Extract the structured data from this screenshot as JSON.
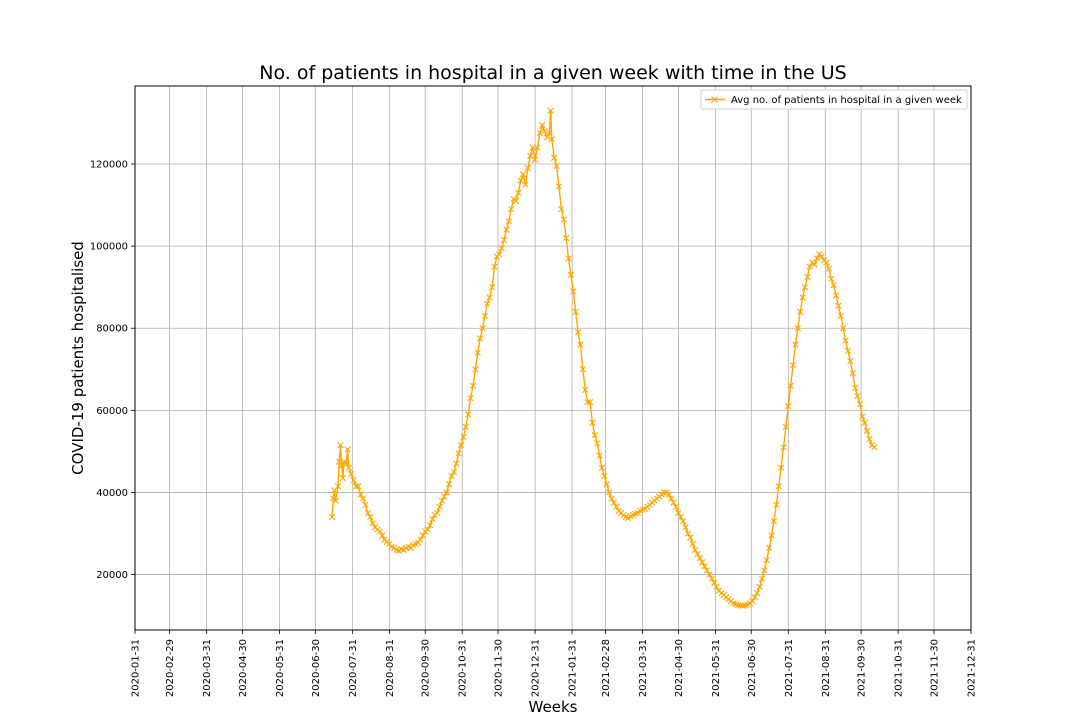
{
  "chart_data": {
    "type": "line",
    "title": "No. of patients in hospital in a given week with time in the US",
    "xlabel": "Weeks",
    "ylabel": "COVID-19 patients hospitalised",
    "grid": true,
    "legend_position": "top-right",
    "line_color": "#FFA500",
    "marker": "x",
    "x_ticks": [
      "2020-01-31",
      "2020-02-29",
      "2020-03-31",
      "2020-04-30",
      "2020-05-31",
      "2020-06-30",
      "2020-07-31",
      "2020-08-31",
      "2020-09-30",
      "2020-10-31",
      "2020-11-30",
      "2020-12-31",
      "2021-01-31",
      "2021-02-28",
      "2021-03-31",
      "2021-04-30",
      "2021-05-31",
      "2021-06-30",
      "2021-07-31",
      "2021-08-31",
      "2021-09-30",
      "2021-10-31",
      "2021-11-30",
      "2021-12-31"
    ],
    "y_ticks": [
      20000,
      40000,
      60000,
      80000,
      100000,
      120000
    ],
    "xlim": [
      "2020-01-31",
      "2021-12-31"
    ],
    "ylim": [
      6500,
      139000
    ],
    "series": [
      {
        "name": "Avg no. of patients in hospital in a given week",
        "color": "#FFA500",
        "points": [
          [
            "2020-07-14",
            34000
          ],
          [
            "2020-07-15",
            38500
          ],
          [
            "2020-07-16",
            40500
          ],
          [
            "2020-07-17",
            38000
          ],
          [
            "2020-07-19",
            41500
          ],
          [
            "2020-07-20",
            47500
          ],
          [
            "2020-07-21",
            51500
          ],
          [
            "2020-07-22",
            46500
          ],
          [
            "2020-07-23",
            43500
          ],
          [
            "2020-07-24",
            47500
          ],
          [
            "2020-07-26",
            47000
          ],
          [
            "2020-07-27",
            50500
          ],
          [
            "2020-07-28",
            46000
          ],
          [
            "2020-07-30",
            44500
          ],
          [
            "2020-08-01",
            43000
          ],
          [
            "2020-08-03",
            41500
          ],
          [
            "2020-08-05",
            41500
          ],
          [
            "2020-08-07",
            39500
          ],
          [
            "2020-08-09",
            38500
          ],
          [
            "2020-08-11",
            37000
          ],
          [
            "2020-08-13",
            35000
          ],
          [
            "2020-08-15",
            34000
          ],
          [
            "2020-08-17",
            32500
          ],
          [
            "2020-08-19",
            31500
          ],
          [
            "2020-08-21",
            31000
          ],
          [
            "2020-08-23",
            30500
          ],
          [
            "2020-08-25",
            29500
          ],
          [
            "2020-08-27",
            28500
          ],
          [
            "2020-08-29",
            28000
          ],
          [
            "2020-08-31",
            27500
          ],
          [
            "2020-09-02",
            26800
          ],
          [
            "2020-09-04",
            26500
          ],
          [
            "2020-09-06",
            26000
          ],
          [
            "2020-09-08",
            25800
          ],
          [
            "2020-09-10",
            26200
          ],
          [
            "2020-09-12",
            26000
          ],
          [
            "2020-09-14",
            26500
          ],
          [
            "2020-09-16",
            26800
          ],
          [
            "2020-09-18",
            26500
          ],
          [
            "2020-09-20",
            27200
          ],
          [
            "2020-09-22",
            27500
          ],
          [
            "2020-09-24",
            27800
          ],
          [
            "2020-09-26",
            28500
          ],
          [
            "2020-09-28",
            29500
          ],
          [
            "2020-09-30",
            30500
          ],
          [
            "2020-10-02",
            31000
          ],
          [
            "2020-10-04",
            32000
          ],
          [
            "2020-10-06",
            33500
          ],
          [
            "2020-10-08",
            34500
          ],
          [
            "2020-10-10",
            35000
          ],
          [
            "2020-10-12",
            36500
          ],
          [
            "2020-10-14",
            38000
          ],
          [
            "2020-10-16",
            39000
          ],
          [
            "2020-10-18",
            40000
          ],
          [
            "2020-10-20",
            42000
          ],
          [
            "2020-10-22",
            44000
          ],
          [
            "2020-10-24",
            45000
          ],
          [
            "2020-10-26",
            47000
          ],
          [
            "2020-10-28",
            49500
          ],
          [
            "2020-10-30",
            51500
          ],
          [
            "2020-11-01",
            53500
          ],
          [
            "2020-11-03",
            56000
          ],
          [
            "2020-11-05",
            59000
          ],
          [
            "2020-11-07",
            63000
          ],
          [
            "2020-11-09",
            66000
          ],
          [
            "2020-11-11",
            70000
          ],
          [
            "2020-11-13",
            74000
          ],
          [
            "2020-11-15",
            77500
          ],
          [
            "2020-11-17",
            80000
          ],
          [
            "2020-11-19",
            83000
          ],
          [
            "2020-11-21",
            86000
          ],
          [
            "2020-11-23",
            87500
          ],
          [
            "2020-11-25",
            90000
          ],
          [
            "2020-11-27",
            95000
          ],
          [
            "2020-11-29",
            97500
          ],
          [
            "2020-12-01",
            98000
          ],
          [
            "2020-12-03",
            99500
          ],
          [
            "2020-12-05",
            101500
          ],
          [
            "2020-12-07",
            104000
          ],
          [
            "2020-12-09",
            106000
          ],
          [
            "2020-12-11",
            109000
          ],
          [
            "2020-12-13",
            111500
          ],
          [
            "2020-12-15",
            111000
          ],
          [
            "2020-12-17",
            113000
          ],
          [
            "2020-12-19",
            116000
          ],
          [
            "2020-12-21",
            117500
          ],
          [
            "2020-12-23",
            115000
          ],
          [
            "2020-12-25",
            119000
          ],
          [
            "2020-12-27",
            122000
          ],
          [
            "2020-12-29",
            124000
          ],
          [
            "2020-12-31",
            121000
          ],
          [
            "2021-01-02",
            124000
          ],
          [
            "2021-01-04",
            127500
          ],
          [
            "2021-01-06",
            129500
          ],
          [
            "2021-01-08",
            128000
          ],
          [
            "2021-01-10",
            126500
          ],
          [
            "2021-01-12",
            127500
          ],
          [
            "2021-01-13",
            133000
          ],
          [
            "2021-01-14",
            126000
          ],
          [
            "2021-01-16",
            121500
          ],
          [
            "2021-01-18",
            119500
          ],
          [
            "2021-01-20",
            114500
          ],
          [
            "2021-01-22",
            109000
          ],
          [
            "2021-01-24",
            106500
          ],
          [
            "2021-01-26",
            102000
          ],
          [
            "2021-01-28",
            97000
          ],
          [
            "2021-01-30",
            93000
          ],
          [
            "2021-02-01",
            89000
          ],
          [
            "2021-02-03",
            84000
          ],
          [
            "2021-02-05",
            79000
          ],
          [
            "2021-02-07",
            76000
          ],
          [
            "2021-02-09",
            70000
          ],
          [
            "2021-02-11",
            65000
          ],
          [
            "2021-02-13",
            62000
          ],
          [
            "2021-02-15",
            62000
          ],
          [
            "2021-02-17",
            57000
          ],
          [
            "2021-02-19",
            54000
          ],
          [
            "2021-02-21",
            52000
          ],
          [
            "2021-02-23",
            49000
          ],
          [
            "2021-02-25",
            46000
          ],
          [
            "2021-02-27",
            44000
          ],
          [
            "2021-03-01",
            42000
          ],
          [
            "2021-03-03",
            40000
          ],
          [
            "2021-03-05",
            38500
          ],
          [
            "2021-03-07",
            37500
          ],
          [
            "2021-03-09",
            36500
          ],
          [
            "2021-03-11",
            35500
          ],
          [
            "2021-03-13",
            35000
          ],
          [
            "2021-03-15",
            34500
          ],
          [
            "2021-03-17",
            34000
          ],
          [
            "2021-03-19",
            33800
          ],
          [
            "2021-03-21",
            34200
          ],
          [
            "2021-03-23",
            34500
          ],
          [
            "2021-03-25",
            34800
          ],
          [
            "2021-03-27",
            35000
          ],
          [
            "2021-03-29",
            35500
          ],
          [
            "2021-03-31",
            35800
          ],
          [
            "2021-04-02",
            36000
          ],
          [
            "2021-04-04",
            36500
          ],
          [
            "2021-04-06",
            37000
          ],
          [
            "2021-04-08",
            37500
          ],
          [
            "2021-04-10",
            38000
          ],
          [
            "2021-04-12",
            38500
          ],
          [
            "2021-04-14",
            39000
          ],
          [
            "2021-04-16",
            39500
          ],
          [
            "2021-04-18",
            40000
          ],
          [
            "2021-04-20",
            40000
          ],
          [
            "2021-04-22",
            39500
          ],
          [
            "2021-04-24",
            38500
          ],
          [
            "2021-04-26",
            37500
          ],
          [
            "2021-04-28",
            36500
          ],
          [
            "2021-04-30",
            35000
          ],
          [
            "2021-05-02",
            34000
          ],
          [
            "2021-05-04",
            33000
          ],
          [
            "2021-05-06",
            31500
          ],
          [
            "2021-05-08",
            30000
          ],
          [
            "2021-05-10",
            29000
          ],
          [
            "2021-05-12",
            27500
          ],
          [
            "2021-05-14",
            26000
          ],
          [
            "2021-05-16",
            25000
          ],
          [
            "2021-05-18",
            24000
          ],
          [
            "2021-05-20",
            23000
          ],
          [
            "2021-05-22",
            22000
          ],
          [
            "2021-05-24",
            21000
          ],
          [
            "2021-05-26",
            20000
          ],
          [
            "2021-05-28",
            19000
          ],
          [
            "2021-05-30",
            18000
          ],
          [
            "2021-06-01",
            17000
          ],
          [
            "2021-06-03",
            16000
          ],
          [
            "2021-06-05",
            15500
          ],
          [
            "2021-06-07",
            15000
          ],
          [
            "2021-06-09",
            14500
          ],
          [
            "2021-06-11",
            14000
          ],
          [
            "2021-06-13",
            13500
          ],
          [
            "2021-06-15",
            13000
          ],
          [
            "2021-06-17",
            12800
          ],
          [
            "2021-06-19",
            12500
          ],
          [
            "2021-06-21",
            12500
          ],
          [
            "2021-06-23",
            12400
          ],
          [
            "2021-06-25",
            12500
          ],
          [
            "2021-06-27",
            12700
          ],
          [
            "2021-06-29",
            13000
          ],
          [
            "2021-07-01",
            13500
          ],
          [
            "2021-07-03",
            14500
          ],
          [
            "2021-07-05",
            15500
          ],
          [
            "2021-07-07",
            17000
          ],
          [
            "2021-07-09",
            19000
          ],
          [
            "2021-07-11",
            21000
          ],
          [
            "2021-07-13",
            23500
          ],
          [
            "2021-07-15",
            26500
          ],
          [
            "2021-07-17",
            29500
          ],
          [
            "2021-07-19",
            33000
          ],
          [
            "2021-07-21",
            37000
          ],
          [
            "2021-07-23",
            41500
          ],
          [
            "2021-07-25",
            46000
          ],
          [
            "2021-07-27",
            51000
          ],
          [
            "2021-07-29",
            56000
          ],
          [
            "2021-07-31",
            61000
          ],
          [
            "2021-08-02",
            66000
          ],
          [
            "2021-08-04",
            71000
          ],
          [
            "2021-08-06",
            76000
          ],
          [
            "2021-08-08",
            80000
          ],
          [
            "2021-08-10",
            84000
          ],
          [
            "2021-08-12",
            87500
          ],
          [
            "2021-08-14",
            90000
          ],
          [
            "2021-08-16",
            92500
          ],
          [
            "2021-08-18",
            95000
          ],
          [
            "2021-08-20",
            96000
          ],
          [
            "2021-08-22",
            95500
          ],
          [
            "2021-08-24",
            97000
          ],
          [
            "2021-08-26",
            98000
          ],
          [
            "2021-08-28",
            97500
          ],
          [
            "2021-08-30",
            96500
          ],
          [
            "2021-09-01",
            96000
          ],
          [
            "2021-09-03",
            94500
          ],
          [
            "2021-09-05",
            92000
          ],
          [
            "2021-09-07",
            90500
          ],
          [
            "2021-09-09",
            88000
          ],
          [
            "2021-09-11",
            85500
          ],
          [
            "2021-09-13",
            83000
          ],
          [
            "2021-09-15",
            80000
          ],
          [
            "2021-09-17",
            77000
          ],
          [
            "2021-09-19",
            74500
          ],
          [
            "2021-09-21",
            72000
          ],
          [
            "2021-09-23",
            69000
          ],
          [
            "2021-09-25",
            65500
          ],
          [
            "2021-09-27",
            63500
          ],
          [
            "2021-09-29",
            61500
          ],
          [
            "2021-10-01",
            58500
          ],
          [
            "2021-10-03",
            57000
          ],
          [
            "2021-10-05",
            55000
          ],
          [
            "2021-10-07",
            53000
          ],
          [
            "2021-10-09",
            51500
          ],
          [
            "2021-10-11",
            51000
          ]
        ]
      }
    ]
  }
}
